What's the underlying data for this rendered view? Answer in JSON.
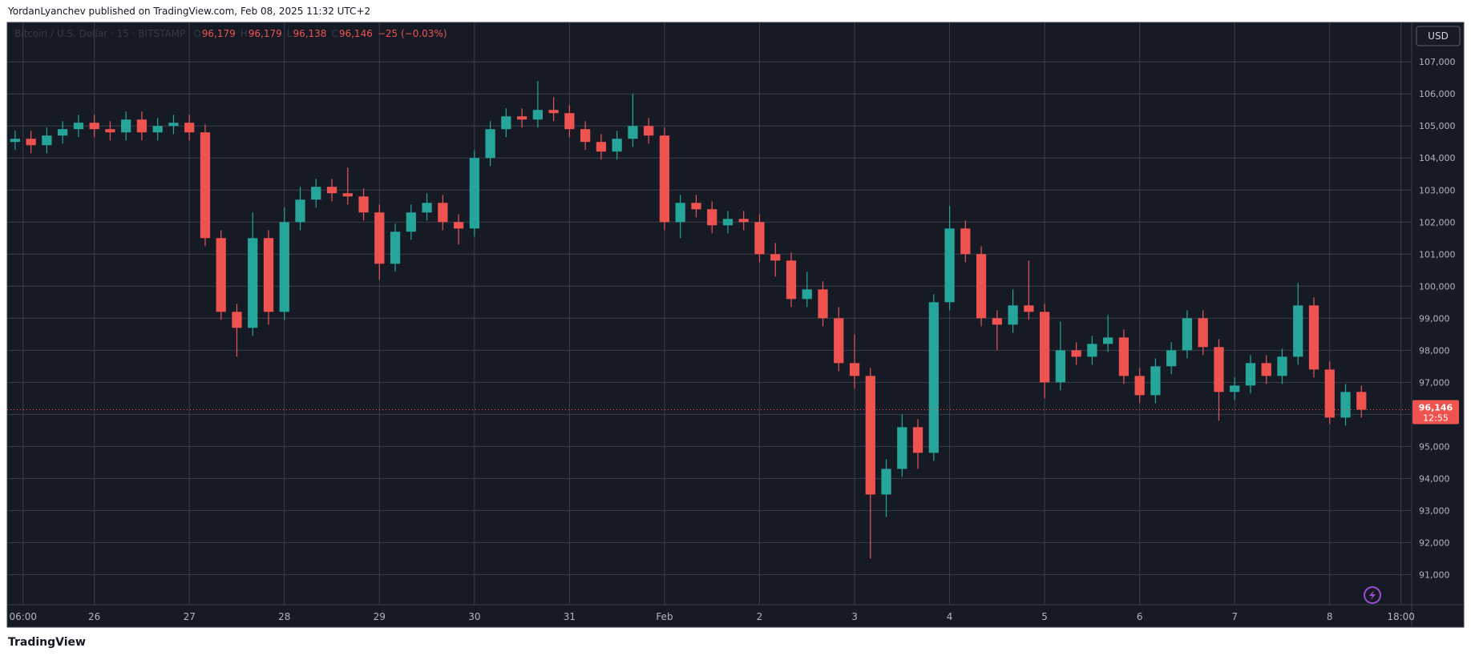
{
  "chart_data": {
    "type": "candlestick",
    "header": "YordanLyanchev published on TradingView.com, Feb 08, 2025 11:32 UTC+2",
    "symbol": "Bitcoin / U.S. Dollar · 15 · BITSTAMP",
    "legend": [
      "O",
      "96,179",
      "H",
      "96,179",
      "L",
      "96,138",
      "C",
      "96,146",
      "−25 (−0.03%)"
    ],
    "currency": "USD",
    "footer": "TradingView",
    "up_color": "#26a69a",
    "down_color": "#ef5350",
    "grid": true,
    "price_label": {
      "value": 96146,
      "label": "96,146"
    },
    "countdown": "12:55",
    "x": [
      4,
      8,
      12,
      16,
      20,
      24,
      28,
      32,
      36,
      40,
      44,
      48,
      52,
      56,
      60,
      64,
      68,
      72,
      76,
      80,
      84,
      88,
      92,
      96,
      100,
      104,
      108,
      112,
      116,
      120,
      124,
      128,
      132,
      136,
      140,
      144,
      148,
      152,
      156,
      160,
      164,
      168,
      172,
      176,
      180,
      184,
      188,
      192,
      196,
      200,
      204,
      208,
      212,
      216,
      220,
      224,
      228,
      232,
      236,
      240,
      244,
      248,
      252,
      256,
      260,
      264,
      268,
      272,
      276,
      280,
      284,
      288,
      292,
      296,
      300,
      304,
      308,
      312,
      316,
      320,
      324,
      328,
      332,
      336,
      340,
      344
    ],
    "open": [
      104500,
      104600,
      104400,
      104700,
      104900,
      105100,
      104900,
      104800,
      105200,
      104800,
      105000,
      105100,
      104800,
      101500,
      99200,
      98700,
      101500,
      99200,
      102000,
      102700,
      103100,
      102900,
      102800,
      102300,
      100700,
      101700,
      102300,
      102600,
      102000,
      101800,
      104000,
      104900,
      105300,
      105200,
      105500,
      105400,
      104900,
      104500,
      104200,
      104600,
      105000,
      104700,
      102000,
      102600,
      102400,
      101900,
      102100,
      102000,
      101000,
      100800,
      99600,
      99900,
      99000,
      97600,
      97200,
      93500,
      94300,
      95600,
      94800,
      99500,
      101800,
      101000,
      99000,
      98800,
      99400,
      99200,
      97000,
      98000,
      97800,
      98200,
      98400,
      97200,
      96600,
      97500,
      98000,
      99000,
      98100,
      96700,
      96900,
      97600,
      97200,
      97800,
      99400,
      97400,
      95900,
      96700
    ],
    "high": [
      104850,
      104850,
      104950,
      105150,
      105350,
      105350,
      105150,
      105450,
      105450,
      105250,
      105350,
      105350,
      105050,
      101750,
      99450,
      102300,
      101750,
      102450,
      103100,
      103350,
      103350,
      103700,
      103050,
      102550,
      101950,
      102550,
      102900,
      102850,
      102250,
      104250,
      105150,
      105550,
      105550,
      106400,
      105900,
      105650,
      105150,
      104750,
      104850,
      106000,
      105250,
      104950,
      102850,
      102850,
      102650,
      102350,
      102350,
      102250,
      101350,
      101050,
      100450,
      100150,
      99350,
      98500,
      97450,
      94600,
      96000,
      95850,
      99750,
      102500,
      102050,
      101250,
      99250,
      99900,
      100800,
      99450,
      98900,
      98250,
      98450,
      99100,
      98650,
      97450,
      97750,
      98250,
      99250,
      99250,
      98350,
      97150,
      97850,
      97850,
      98050,
      100100,
      99650,
      97650,
      96950,
      96900
    ],
    "low": [
      104250,
      104150,
      104150,
      104450,
      104650,
      104650,
      104550,
      104550,
      104550,
      104550,
      104750,
      104550,
      101250,
      98950,
      97800,
      98450,
      98800,
      98950,
      101750,
      102450,
      102650,
      102550,
      102050,
      100200,
      100450,
      101450,
      102050,
      101750,
      101300,
      101550,
      103750,
      104650,
      104950,
      104950,
      105150,
      104650,
      104250,
      103950,
      103950,
      104350,
      104450,
      101750,
      101500,
      102150,
      101650,
      101650,
      101750,
      100750,
      100300,
      99350,
      99350,
      98750,
      97350,
      96800,
      91500,
      92800,
      94050,
      94300,
      94550,
      99250,
      100750,
      98750,
      98000,
      98550,
      98950,
      96500,
      96750,
      97550,
      97550,
      97950,
      96950,
      96350,
      96350,
      97250,
      97750,
      97850,
      95800,
      96450,
      96650,
      96950,
      96950,
      97550,
      97150,
      95700,
      95650,
      95900
    ],
    "close": [
      104600,
      104400,
      104700,
      104900,
      105100,
      104900,
      104800,
      105200,
      104800,
      105000,
      105100,
      104800,
      101500,
      99200,
      98700,
      101500,
      99200,
      102000,
      102700,
      103100,
      102900,
      102800,
      102300,
      100700,
      101700,
      102300,
      102600,
      102000,
      101800,
      104000,
      104900,
      105300,
      105200,
      105500,
      105400,
      104900,
      104500,
      104200,
      104600,
      105000,
      104700,
      102000,
      102600,
      102400,
      101900,
      102100,
      102000,
      101000,
      100800,
      99600,
      99900,
      99000,
      97600,
      97200,
      93500,
      94300,
      95600,
      94800,
      99500,
      101800,
      101000,
      99000,
      98800,
      99400,
      99200,
      97000,
      98000,
      97800,
      98200,
      98400,
      97200,
      96600,
      97500,
      98000,
      99000,
      98100,
      96700,
      96900,
      97600,
      97200,
      97800,
      99400,
      97400,
      95900,
      96700,
      96146
    ],
    "xlim": [
      2,
      356.7
    ],
    "xticks": [
      {
        "value": 6,
        "label": "06:00"
      },
      {
        "value": 24,
        "label": "26"
      },
      {
        "value": 48,
        "label": "27"
      },
      {
        "value": 72,
        "label": "28"
      },
      {
        "value": 96,
        "label": "29"
      },
      {
        "value": 120,
        "label": "30"
      },
      {
        "value": 144,
        "label": "31"
      },
      {
        "value": 168,
        "label": "Feb"
      },
      {
        "value": 192,
        "label": "2"
      },
      {
        "value": 216,
        "label": "3"
      },
      {
        "value": 240,
        "label": "4"
      },
      {
        "value": 264,
        "label": "5"
      },
      {
        "value": 288,
        "label": "6"
      },
      {
        "value": 312,
        "label": "7"
      },
      {
        "value": 336,
        "label": "8"
      },
      {
        "value": 354,
        "label": "18:00"
      }
    ],
    "ylim": [
      90060,
      108230
    ],
    "yticks": [
      {
        "value": 91000,
        "label": "91,000"
      },
      {
        "value": 92000,
        "label": "92,000"
      },
      {
        "value": 93000,
        "label": "93,000"
      },
      {
        "value": 94000,
        "label": "94,000"
      },
      {
        "value": 95000,
        "label": "95,000"
      },
      {
        "value": 96000,
        "label": "96,000"
      },
      {
        "value": 97000,
        "label": "97,000"
      },
      {
        "value": 98000,
        "label": "98,000"
      },
      {
        "value": 99000,
        "label": "99,000"
      },
      {
        "value": 100000,
        "label": "100,000"
      },
      {
        "value": 101000,
        "label": "101,000"
      },
      {
        "value": 102000,
        "label": "102,000"
      },
      {
        "value": 103000,
        "label": "103,000"
      },
      {
        "value": 104000,
        "label": "104,000"
      },
      {
        "value": 105000,
        "label": "105,000"
      },
      {
        "value": 106000,
        "label": "106,000"
      },
      {
        "value": 107000,
        "label": "107,000"
      }
    ]
  }
}
